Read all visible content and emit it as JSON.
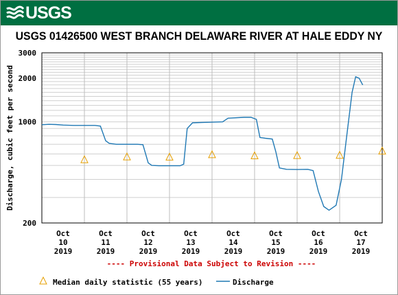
{
  "header": {
    "logo_text": "USGS",
    "brand_color": "#006f41"
  },
  "chart_data": {
    "type": "line",
    "title": "USGS 01426500 WEST BRANCH DELAWARE RIVER AT HALE EDDY NY",
    "ylabel": "Discharge, cubic feet per second",
    "xlabel": "",
    "y_scale": "log",
    "ylim": [
      200,
      3000
    ],
    "y_ticks": [
      200,
      1000,
      2000,
      3000
    ],
    "y_tick_labels": [
      "200",
      "1000",
      "2000",
      "3000"
    ],
    "x_unit": "day",
    "x_range": [
      "2019-10-09 12:00",
      "2019-10-17 12:00"
    ],
    "x_tick_labels": [
      [
        "Oct",
        "10",
        "2019"
      ],
      [
        "Oct",
        "11",
        "2019"
      ],
      [
        "Oct",
        "12",
        "2019"
      ],
      [
        "Oct",
        "13",
        "2019"
      ],
      [
        "Oct",
        "14",
        "2019"
      ],
      [
        "Oct",
        "15",
        "2019"
      ],
      [
        "Oct",
        "16",
        "2019"
      ],
      [
        "Oct",
        "17",
        "2019"
      ]
    ],
    "grid": true,
    "note": "---- Provisional Data Subject to Revision ----",
    "note_color": "#cc0000",
    "legend_position": "bottom",
    "series": [
      {
        "name": "Discharge",
        "color": "#1f78b4",
        "points": [
          [
            "2019-10-09 12:00",
            955
          ],
          [
            "2019-10-09 16:00",
            962
          ],
          [
            "2019-10-09 20:00",
            958
          ],
          [
            "2019-10-10 00:00",
            950
          ],
          [
            "2019-10-10 06:00",
            945
          ],
          [
            "2019-10-10 12:00",
            945
          ],
          [
            "2019-10-10 18:00",
            945
          ],
          [
            "2019-10-10 21:00",
            935
          ],
          [
            "2019-10-11 00:00",
            740
          ],
          [
            "2019-10-11 02:00",
            710
          ],
          [
            "2019-10-11 06:00",
            700
          ],
          [
            "2019-10-11 12:00",
            700
          ],
          [
            "2019-10-11 18:00",
            700
          ],
          [
            "2019-10-11 21:00",
            695
          ],
          [
            "2019-10-12 00:00",
            520
          ],
          [
            "2019-10-12 02:00",
            500
          ],
          [
            "2019-10-12 06:00",
            497
          ],
          [
            "2019-10-12 12:00",
            497
          ],
          [
            "2019-10-12 18:00",
            497
          ],
          [
            "2019-10-12 20:00",
            510
          ],
          [
            "2019-10-12 22:00",
            900
          ],
          [
            "2019-10-13 01:00",
            985
          ],
          [
            "2019-10-13 06:00",
            990
          ],
          [
            "2019-10-13 12:00",
            995
          ],
          [
            "2019-10-13 18:00",
            1000
          ],
          [
            "2019-10-13 21:00",
            1060
          ],
          [
            "2019-10-14 06:00",
            1075
          ],
          [
            "2019-10-14 10:00",
            1075
          ],
          [
            "2019-10-14 13:00",
            1040
          ],
          [
            "2019-10-14 15:00",
            780
          ],
          [
            "2019-10-14 18:00",
            770
          ],
          [
            "2019-10-14 22:00",
            760
          ],
          [
            "2019-10-15 00:00",
            620
          ],
          [
            "2019-10-15 02:00",
            480
          ],
          [
            "2019-10-15 06:00",
            470
          ],
          [
            "2019-10-15 12:00",
            468
          ],
          [
            "2019-10-15 18:00",
            470
          ],
          [
            "2019-10-15 21:00",
            460
          ],
          [
            "2019-10-16 00:00",
            330
          ],
          [
            "2019-10-16 03:00",
            260
          ],
          [
            "2019-10-16 06:00",
            245
          ],
          [
            "2019-10-16 10:00",
            265
          ],
          [
            "2019-10-16 13:00",
            400
          ],
          [
            "2019-10-16 16:00",
            800
          ],
          [
            "2019-10-16 19:00",
            1600
          ],
          [
            "2019-10-16 21:00",
            2050
          ],
          [
            "2019-10-16 23:00",
            2000
          ],
          [
            "2019-10-17 01:00",
            1800
          ]
        ]
      },
      {
        "name": "Median daily statistic (55 years)",
        "color": "#e69f00",
        "marker": "triangle",
        "points": [
          [
            "2019-10-10 12:00",
            545
          ],
          [
            "2019-10-11 12:00",
            570
          ],
          [
            "2019-10-12 12:00",
            568
          ],
          [
            "2019-10-13 12:00",
            590
          ],
          [
            "2019-10-14 12:00",
            580
          ],
          [
            "2019-10-15 12:00",
            582
          ],
          [
            "2019-10-16 12:00",
            585
          ],
          [
            "2019-10-17 12:00",
            625
          ]
        ]
      }
    ]
  }
}
